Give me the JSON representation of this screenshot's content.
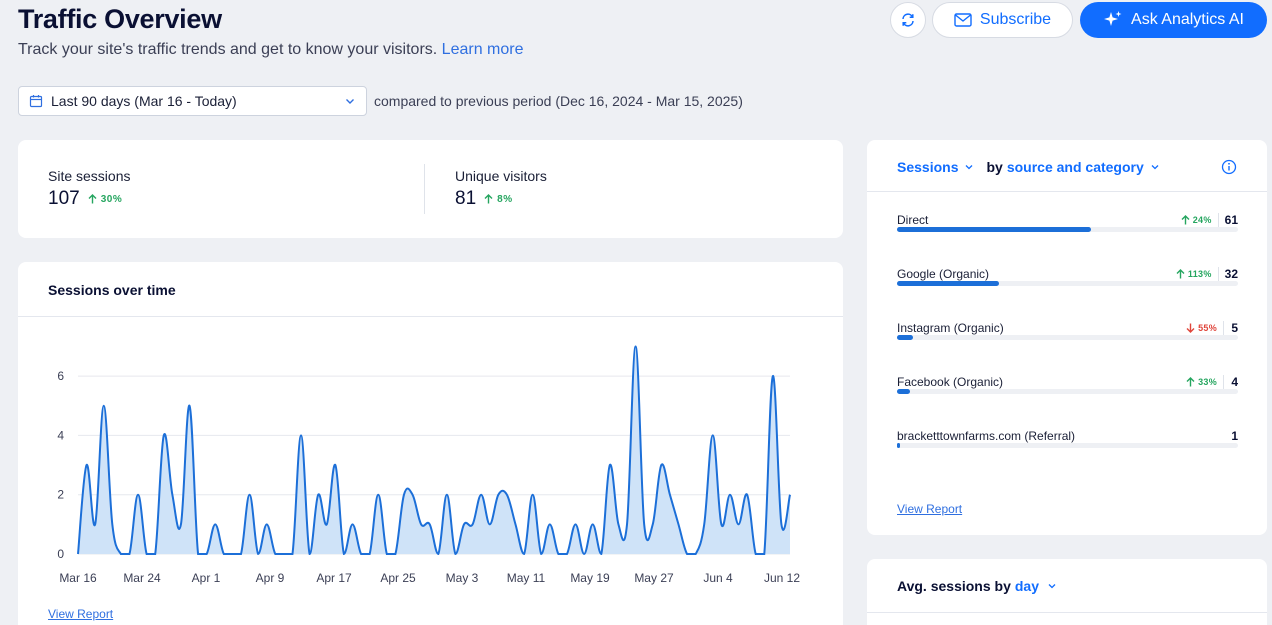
{
  "header": {
    "title": "Traffic Overview",
    "subtitle": "Track your site's traffic trends and get to know your visitors.",
    "learn_more": "Learn more"
  },
  "toolbar": {
    "refresh_icon": "refresh-icon",
    "subscribe_label": "Subscribe",
    "ask_ai_label": "Ask Analytics AI"
  },
  "date_filter": {
    "selected": "Last 90 days (Mar 16 - Today)",
    "compare_text": "compared to previous period (Dec 16, 2024 - Mar 15, 2025)"
  },
  "stats": [
    {
      "label": "Site sessions",
      "value": "107",
      "change": "30%"
    },
    {
      "label": "Unique visitors",
      "value": "81",
      "change": "8%"
    }
  ],
  "sessions_chart": {
    "title": "Sessions over time",
    "view_report": "View Report"
  },
  "chart_data": {
    "type": "area",
    "title": "Sessions over time",
    "xlabel": "",
    "ylabel": "",
    "ylim": [
      0,
      7
    ],
    "yticks": [
      0,
      2,
      4,
      6
    ],
    "x_tick_labels": [
      "Mar 16",
      "Mar 24",
      "Apr 1",
      "Apr 9",
      "Apr 17",
      "Apr 25",
      "May 3",
      "May 11",
      "May 19",
      "May 27",
      "Jun 4",
      "Jun 12"
    ],
    "values": [
      0,
      3,
      1,
      5,
      1,
      0,
      0,
      2,
      0,
      0,
      4,
      2,
      1,
      5,
      0,
      0,
      1,
      0,
      0,
      0,
      2,
      0,
      1,
      0,
      0,
      0,
      4,
      0,
      2,
      1,
      3,
      0,
      1,
      0,
      0,
      2,
      0,
      0,
      2,
      2,
      1,
      1,
      0,
      2,
      0,
      1,
      1,
      2,
      1,
      2,
      2,
      1,
      0,
      2,
      0,
      1,
      0,
      0,
      1,
      0,
      1,
      0,
      3,
      1,
      1,
      7,
      1,
      1,
      3,
      2,
      1,
      0,
      0,
      1,
      4,
      1,
      2,
      1,
      2,
      0,
      0,
      6,
      1,
      2
    ],
    "color": "#1c6fd8",
    "fill": "#cfe3f8"
  },
  "sources": {
    "title_metric": "Sessions",
    "title_by": "by",
    "title_dimension": "source and category",
    "view_report": "View Report",
    "items": [
      {
        "label": "Direct",
        "change": "24%",
        "direction": "up",
        "count": "61",
        "value": 61
      },
      {
        "label": "Google (Organic)",
        "change": "113%",
        "direction": "up",
        "count": "32",
        "value": 32
      },
      {
        "label": "Instagram (Organic)",
        "change": "55%",
        "direction": "down",
        "count": "5",
        "value": 5
      },
      {
        "label": "Facebook (Organic)",
        "change": "33%",
        "direction": "up",
        "count": "4",
        "value": 4
      },
      {
        "label": "bracketttownfarms.com (Referral)",
        "change": "",
        "direction": "none",
        "count": "1",
        "value": 1
      }
    ],
    "max_value": 107
  },
  "avg_sessions": {
    "title": "Avg. sessions by",
    "dimension": "day"
  },
  "colors": {
    "accent": "#116dff",
    "positive": "#25a55f",
    "negative": "#e0453b",
    "bar": "#1c6fd8"
  }
}
